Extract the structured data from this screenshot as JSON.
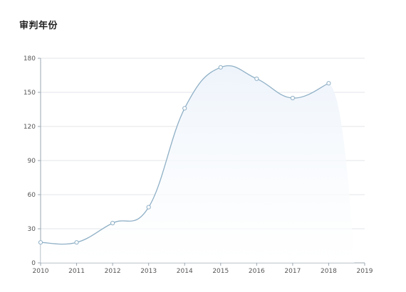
{
  "chart_data": {
    "type": "area",
    "title": "审判年份",
    "xlabel": "",
    "ylabel": "",
    "x_ticks": [
      "2010",
      "2011",
      "2012",
      "2013",
      "2014",
      "2015",
      "2016",
      "2017",
      "2018",
      "2019"
    ],
    "y_ticks": [
      0,
      30,
      60,
      90,
      120,
      150,
      180
    ],
    "ylim": [
      0,
      180
    ],
    "xlim": [
      2010,
      2019
    ],
    "grid": true,
    "legend": "none",
    "series": [
      {
        "x": [
          2010,
          2011,
          2012,
          2013,
          2014,
          2015,
          2016,
          2017,
          2018
        ],
        "values": [
          18,
          18,
          35,
          49,
          136,
          172,
          162,
          145,
          158
        ],
        "color": "#8fb0c6",
        "fill": "#eef4fb"
      }
    ]
  }
}
